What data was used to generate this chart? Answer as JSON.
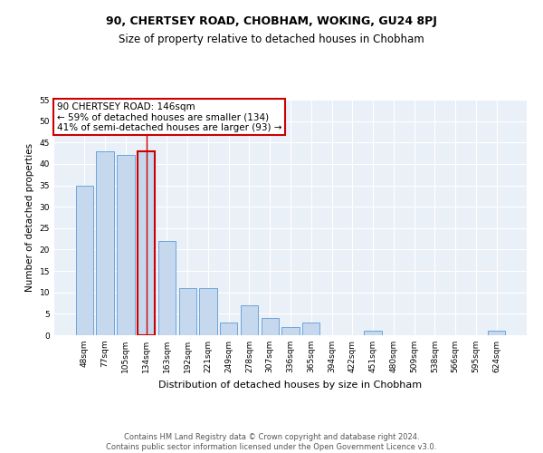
{
  "title": "90, CHERTSEY ROAD, CHOBHAM, WOKING, GU24 8PJ",
  "subtitle": "Size of property relative to detached houses in Chobham",
  "xlabel": "Distribution of detached houses by size in Chobham",
  "ylabel": "Number of detached properties",
  "categories": [
    "48sqm",
    "77sqm",
    "105sqm",
    "134sqm",
    "163sqm",
    "192sqm",
    "221sqm",
    "249sqm",
    "278sqm",
    "307sqm",
    "336sqm",
    "365sqm",
    "394sqm",
    "422sqm",
    "451sqm",
    "480sqm",
    "509sqm",
    "538sqm",
    "566sqm",
    "595sqm",
    "624sqm"
  ],
  "values": [
    35,
    43,
    42,
    43,
    22,
    11,
    11,
    3,
    7,
    4,
    2,
    3,
    0,
    0,
    1,
    0,
    0,
    0,
    0,
    0,
    1
  ],
  "bar_color": "#c5d8ed",
  "bar_edge_color": "#5b9bd5",
  "highlight_index": 3,
  "highlight_edge_color": "#cc0000",
  "vline_color": "#cc0000",
  "annotation_box_text": "90 CHERTSEY ROAD: 146sqm\n← 59% of detached houses are smaller (134)\n41% of semi-detached houses are larger (93) →",
  "annotation_box_color": "white",
  "annotation_box_edge_color": "#cc0000",
  "ylim": [
    0,
    55
  ],
  "yticks": [
    0,
    5,
    10,
    15,
    20,
    25,
    30,
    35,
    40,
    45,
    50,
    55
  ],
  "footer_text": "Contains HM Land Registry data © Crown copyright and database right 2024.\nContains public sector information licensed under the Open Government Licence v3.0.",
  "bg_color": "#eaf0f8",
  "grid_color": "white",
  "title_fontsize": 9,
  "subtitle_fontsize": 8.5,
  "xlabel_fontsize": 8,
  "ylabel_fontsize": 7.5,
  "tick_fontsize": 6.5,
  "footer_fontsize": 6,
  "ann_fontsize": 7.5
}
